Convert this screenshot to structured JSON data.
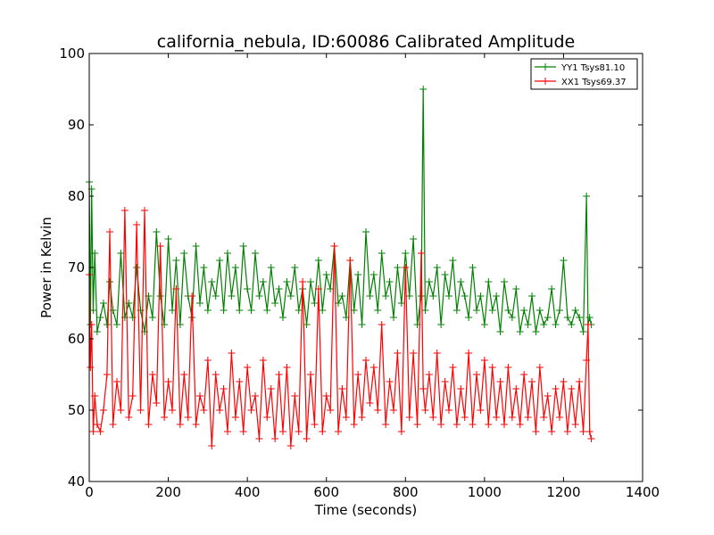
{
  "chart_data": {
    "type": "line",
    "title": "california_nebula, ID:60086 Calibrated Amplitude",
    "xlabel": "Time (seconds)",
    "ylabel": "Power in Kelvin",
    "xlim": [
      0,
      1400
    ],
    "ylim": [
      40,
      100
    ],
    "xticks": [
      0,
      200,
      400,
      600,
      800,
      1000,
      1200,
      1400
    ],
    "yticks": [
      40,
      50,
      60,
      70,
      80,
      90,
      100
    ],
    "grid": false,
    "legend_position": "top-right",
    "marker": "+",
    "series": [
      {
        "name": "YY1 Tsys81.10",
        "color": "#008000",
        "x": [
          0,
          3,
          6,
          10,
          14,
          20,
          28,
          36,
          45,
          52,
          60,
          70,
          80,
          90,
          100,
          110,
          120,
          130,
          140,
          150,
          160,
          170,
          180,
          190,
          200,
          210,
          220,
          230,
          240,
          250,
          260,
          270,
          280,
          290,
          300,
          310,
          320,
          330,
          340,
          350,
          360,
          370,
          380,
          390,
          400,
          410,
          420,
          430,
          440,
          450,
          460,
          470,
          480,
          490,
          500,
          510,
          520,
          530,
          540,
          550,
          560,
          570,
          580,
          590,
          600,
          610,
          620,
          630,
          640,
          650,
          660,
          670,
          680,
          690,
          700,
          710,
          720,
          730,
          740,
          750,
          760,
          770,
          780,
          790,
          800,
          810,
          820,
          830,
          840,
          845,
          850,
          860,
          870,
          880,
          890,
          900,
          910,
          920,
          930,
          940,
          950,
          960,
          970,
          980,
          990,
          1000,
          1010,
          1020,
          1030,
          1040,
          1050,
          1060,
          1070,
          1080,
          1090,
          1100,
          1110,
          1120,
          1130,
          1140,
          1150,
          1160,
          1170,
          1180,
          1190,
          1200,
          1210,
          1220,
          1230,
          1240,
          1250,
          1258,
          1262,
          1266,
          1270
        ],
        "y": [
          82,
          62,
          81,
          64,
          72,
          61,
          63,
          65,
          62,
          68,
          64,
          62,
          72,
          63,
          65,
          63,
          70,
          64,
          61,
          66,
          63,
          75,
          66,
          62,
          74,
          64,
          71,
          62,
          72,
          66,
          63,
          73,
          65,
          70,
          64,
          68,
          66,
          71,
          64,
          72,
          66,
          70,
          64,
          73,
          67,
          64,
          72,
          66,
          68,
          64,
          70,
          65,
          67,
          63,
          68,
          66,
          70,
          64,
          67,
          62,
          68,
          65,
          71,
          64,
          69,
          67,
          73,
          65,
          66,
          63,
          71,
          64,
          69,
          62,
          75,
          66,
          69,
          64,
          72,
          66,
          68,
          63,
          70,
          65,
          72,
          66,
          74,
          62,
          66,
          95,
          64,
          68,
          66,
          70,
          62,
          69,
          66,
          71,
          64,
          68,
          66,
          63,
          70,
          64,
          66,
          62,
          68,
          64,
          66,
          61,
          68,
          64,
          63,
          67,
          61,
          64,
          62,
          66,
          61,
          64,
          62,
          63,
          67,
          62,
          64,
          71,
          63,
          62,
          64,
          63,
          61,
          80,
          62,
          63,
          62
        ]
      },
      {
        "name": "XX1 Tsys69.37",
        "color": "#ff0000",
        "x": [
          0,
          3,
          6,
          10,
          14,
          20,
          28,
          36,
          45,
          52,
          60,
          70,
          80,
          90,
          100,
          110,
          120,
          130,
          140,
          150,
          160,
          170,
          180,
          190,
          200,
          210,
          220,
          230,
          240,
          250,
          260,
          270,
          280,
          290,
          300,
          310,
          320,
          330,
          340,
          350,
          360,
          370,
          380,
          390,
          400,
          410,
          420,
          430,
          440,
          450,
          460,
          470,
          480,
          490,
          500,
          510,
          520,
          530,
          540,
          550,
          560,
          570,
          580,
          590,
          600,
          610,
          620,
          630,
          640,
          650,
          660,
          670,
          680,
          690,
          700,
          710,
          720,
          730,
          740,
          750,
          760,
          770,
          780,
          790,
          800,
          810,
          820,
          830,
          840,
          845,
          850,
          860,
          870,
          880,
          890,
          900,
          910,
          920,
          930,
          940,
          950,
          960,
          970,
          980,
          990,
          1000,
          1010,
          1020,
          1030,
          1040,
          1050,
          1060,
          1070,
          1080,
          1090,
          1100,
          1110,
          1120,
          1130,
          1140,
          1150,
          1160,
          1170,
          1180,
          1190,
          1200,
          1210,
          1220,
          1230,
          1240,
          1250,
          1258,
          1262,
          1266,
          1270
        ],
        "y": [
          69,
          56,
          62,
          47,
          52,
          48,
          47,
          50,
          55,
          75,
          48,
          54,
          50,
          78,
          49,
          52,
          76,
          50,
          78,
          48,
          55,
          51,
          73,
          49,
          54,
          50,
          67,
          48,
          55,
          49,
          66,
          48,
          52,
          50,
          57,
          45,
          55,
          50,
          53,
          47,
          58,
          49,
          54,
          47,
          56,
          50,
          52,
          46,
          57,
          49,
          53,
          46,
          55,
          47,
          56,
          45,
          52,
          47,
          68,
          46,
          55,
          48,
          67,
          47,
          52,
          50,
          73,
          47,
          53,
          49,
          71,
          48,
          55,
          49,
          57,
          51,
          56,
          50,
          62,
          48,
          54,
          50,
          58,
          47,
          70,
          49,
          58,
          48,
          72,
          53,
          50,
          55,
          49,
          58,
          48,
          54,
          50,
          56,
          48,
          53,
          49,
          58,
          48,
          55,
          50,
          57,
          48,
          56,
          49,
          54,
          48,
          56,
          49,
          53,
          48,
          55,
          49,
          54,
          47,
          56,
          49,
          52,
          47,
          53,
          49,
          54,
          47,
          53,
          48,
          54,
          47,
          57,
          62,
          47,
          46
        ]
      }
    ]
  }
}
